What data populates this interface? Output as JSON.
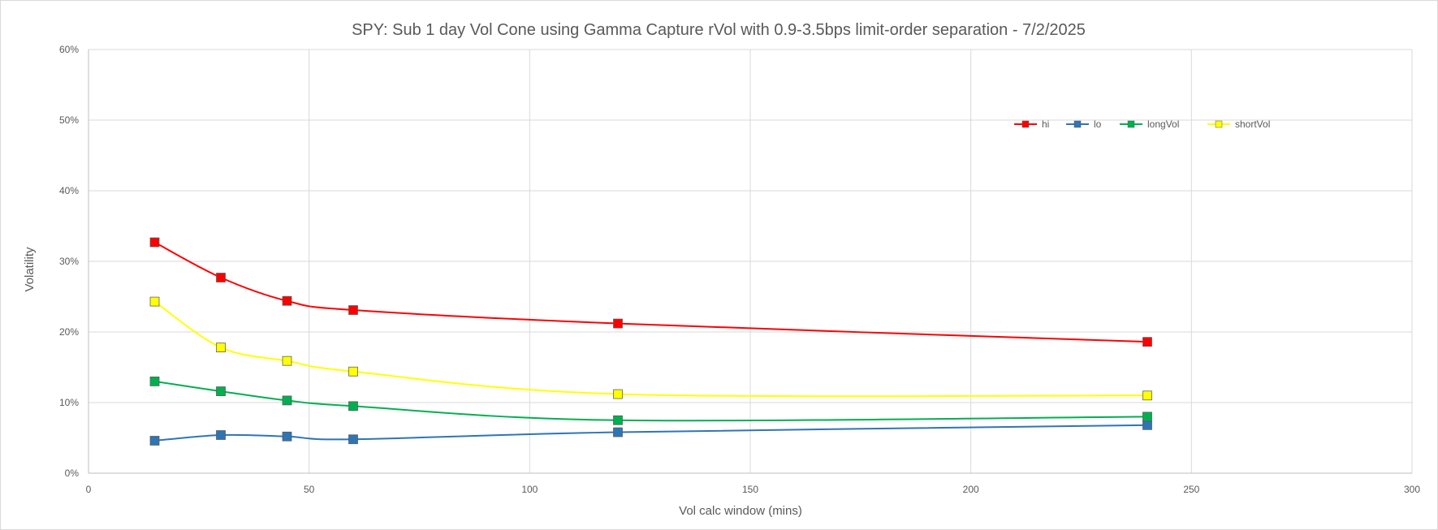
{
  "chart_data": {
    "type": "line",
    "title": "SPY: Sub 1 day Vol Cone using Gamma Capture rVol with 0.9-3.5bps limit-order  separation - 7/2/2025",
    "xlabel": "Vol calc window (mins)",
    "ylabel": "Volatility",
    "xlim": [
      0,
      300
    ],
    "ylim": [
      0,
      0.6
    ],
    "xticks": [
      0,
      50,
      100,
      150,
      200,
      250,
      300
    ],
    "yticks": [
      0,
      0.1,
      0.2,
      0.3,
      0.4,
      0.5,
      0.6
    ],
    "x_tick_labels": [
      "0",
      "50",
      "100",
      "150",
      "200",
      "250",
      "300"
    ],
    "y_tick_labels": [
      "0%",
      "10%",
      "20%",
      "30%",
      "40%",
      "50%",
      "60%"
    ],
    "grid": true,
    "legend_position": "top-right",
    "smooth_lines": true,
    "markers": "square",
    "series": [
      {
        "name": "hi",
        "color": "#ff0000",
        "marker_color": "#ff0000",
        "x": [
          15,
          30,
          45,
          60,
          120,
          240
        ],
        "values": [
          0.327,
          0.277,
          0.244,
          0.231,
          0.212,
          0.186
        ]
      },
      {
        "name": "lo",
        "color": "#2e75b6",
        "marker_color": "#2e75b6",
        "x": [
          15,
          30,
          45,
          60,
          120,
          240
        ],
        "values": [
          0.046,
          0.054,
          0.052,
          0.048,
          0.058,
          0.068
        ]
      },
      {
        "name": "longVol",
        "color": "#00b050",
        "marker_color": "#00b050",
        "x": [
          15,
          30,
          45,
          60,
          120,
          240
        ],
        "values": [
          0.13,
          0.116,
          0.103,
          0.095,
          0.075,
          0.08
        ]
      },
      {
        "name": "shortVol",
        "color": "#ffff00",
        "marker_color": "#ffff00",
        "x": [
          15,
          30,
          45,
          60,
          120,
          240
        ],
        "values": [
          0.243,
          0.178,
          0.159,
          0.144,
          0.112,
          0.11
        ]
      }
    ]
  }
}
